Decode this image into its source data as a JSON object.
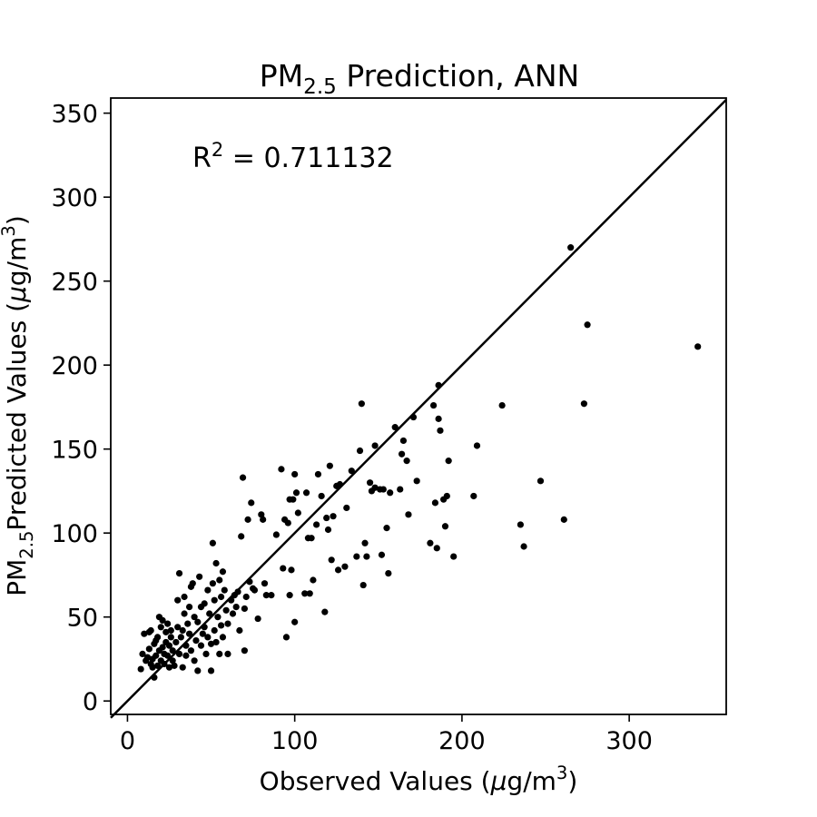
{
  "chart_data": {
    "type": "scatter",
    "title": {
      "prefix": "PM",
      "sub": "2.5",
      "suffix": " Prediction, ANN"
    },
    "xlabel": {
      "prefix": "Observed Values (",
      "mu": "μ",
      "unit": "g/m",
      "sup": "3",
      "suffix": ")"
    },
    "ylabel": {
      "prefix": "PM",
      "sub": "2.5",
      "mid": "Predicted Values (",
      "mu": "μ",
      "unit": "g/m",
      "sup": "3",
      "suffix": ")"
    },
    "annotation": {
      "r": "R",
      "sup": "2",
      "text": " = 0.711132"
    },
    "xlim": [
      -10,
      358
    ],
    "ylim": [
      -8,
      359
    ],
    "xticks": [
      0,
      100,
      200,
      300
    ],
    "yticks": [
      0,
      50,
      100,
      150,
      200,
      250,
      300,
      350
    ],
    "reference_line": [
      [
        -10,
        -10
      ],
      [
        358,
        358
      ]
    ],
    "points": [
      [
        8,
        19
      ],
      [
        9,
        28
      ],
      [
        10,
        40
      ],
      [
        11,
        24
      ],
      [
        12,
        26
      ],
      [
        13,
        31
      ],
      [
        13,
        41
      ],
      [
        14,
        42
      ],
      [
        14,
        22
      ],
      [
        15,
        25
      ],
      [
        15,
        20
      ],
      [
        16,
        14
      ],
      [
        16,
        34
      ],
      [
        17,
        27
      ],
      [
        17,
        36
      ],
      [
        18,
        21
      ],
      [
        18,
        38
      ],
      [
        19,
        50
      ],
      [
        19,
        30
      ],
      [
        20,
        24
      ],
      [
        20,
        44
      ],
      [
        21,
        32
      ],
      [
        21,
        48
      ],
      [
        22,
        22
      ],
      [
        22,
        28
      ],
      [
        23,
        35
      ],
      [
        23,
        41
      ],
      [
        24,
        27
      ],
      [
        24,
        46
      ],
      [
        25,
        33
      ],
      [
        25,
        20
      ],
      [
        26,
        38
      ],
      [
        26,
        42
      ],
      [
        27,
        30
      ],
      [
        27,
        24
      ],
      [
        28,
        21
      ],
      [
        29,
        35
      ],
      [
        30,
        44
      ],
      [
        30,
        60
      ],
      [
        31,
        76
      ],
      [
        31,
        28
      ],
      [
        32,
        38
      ],
      [
        33,
        20
      ],
      [
        33,
        42
      ],
      [
        34,
        62
      ],
      [
        34,
        52
      ],
      [
        35,
        33
      ],
      [
        35,
        27
      ],
      [
        36,
        46
      ],
      [
        37,
        56
      ],
      [
        37,
        40
      ],
      [
        38,
        68
      ],
      [
        38,
        30
      ],
      [
        39,
        70
      ],
      [
        40,
        24
      ],
      [
        40,
        50
      ],
      [
        41,
        36
      ],
      [
        42,
        47
      ],
      [
        42,
        18
      ],
      [
        43,
        74
      ],
      [
        44,
        56
      ],
      [
        44,
        33
      ],
      [
        45,
        40
      ],
      [
        46,
        58
      ],
      [
        46,
        44
      ],
      [
        47,
        28
      ],
      [
        48,
        66
      ],
      [
        48,
        38
      ],
      [
        49,
        52
      ],
      [
        50,
        18
      ],
      [
        50,
        34
      ],
      [
        51,
        94
      ],
      [
        51,
        70
      ],
      [
        52,
        42
      ],
      [
        52,
        60
      ],
      [
        53,
        82
      ],
      [
        53,
        35
      ],
      [
        54,
        50
      ],
      [
        55,
        72
      ],
      [
        55,
        28
      ],
      [
        56,
        62
      ],
      [
        56,
        45
      ],
      [
        57,
        77
      ],
      [
        57,
        38
      ],
      [
        58,
        66
      ],
      [
        59,
        54
      ],
      [
        60,
        28
      ],
      [
        60,
        46
      ],
      [
        62,
        60
      ],
      [
        63,
        52
      ],
      [
        64,
        63
      ],
      [
        65,
        56
      ],
      [
        66,
        65
      ],
      [
        67,
        42
      ],
      [
        68,
        98
      ],
      [
        69,
        133
      ],
      [
        70,
        55
      ],
      [
        70,
        30
      ],
      [
        71,
        62
      ],
      [
        72,
        108
      ],
      [
        73,
        71
      ],
      [
        74,
        118
      ],
      [
        75,
        67
      ],
      [
        76,
        66
      ],
      [
        78,
        49
      ],
      [
        80,
        111
      ],
      [
        81,
        108
      ],
      [
        82,
        70
      ],
      [
        83,
        63
      ],
      [
        86,
        63
      ],
      [
        89,
        99
      ],
      [
        92,
        138
      ],
      [
        93,
        79
      ],
      [
        94,
        108
      ],
      [
        95,
        38
      ],
      [
        96,
        106
      ],
      [
        97,
        63
      ],
      [
        97,
        120
      ],
      [
        98,
        78
      ],
      [
        99,
        120
      ],
      [
        100,
        135
      ],
      [
        100,
        47
      ],
      [
        101,
        124
      ],
      [
        102,
        112
      ],
      [
        106,
        64
      ],
      [
        107,
        124
      ],
      [
        108,
        97
      ],
      [
        109,
        64
      ],
      [
        110,
        97
      ],
      [
        111,
        72
      ],
      [
        113,
        105
      ],
      [
        114,
        135
      ],
      [
        116,
        122
      ],
      [
        118,
        53
      ],
      [
        119,
        109
      ],
      [
        120,
        102
      ],
      [
        121,
        140
      ],
      [
        122,
        84
      ],
      [
        123,
        110
      ],
      [
        125,
        128
      ],
      [
        126,
        78
      ],
      [
        127,
        129
      ],
      [
        130,
        80
      ],
      [
        131,
        115
      ],
      [
        134,
        137
      ],
      [
        137,
        86
      ],
      [
        139,
        149
      ],
      [
        140,
        177
      ],
      [
        141,
        69
      ],
      [
        142,
        94
      ],
      [
        143,
        86
      ],
      [
        145,
        130
      ],
      [
        146,
        125
      ],
      [
        148,
        127
      ],
      [
        148,
        152
      ],
      [
        151,
        126
      ],
      [
        152,
        87
      ],
      [
        153,
        126
      ],
      [
        155,
        103
      ],
      [
        156,
        76
      ],
      [
        157,
        124
      ],
      [
        160,
        163
      ],
      [
        163,
        126
      ],
      [
        164,
        147
      ],
      [
        165,
        155
      ],
      [
        167,
        143
      ],
      [
        168,
        111
      ],
      [
        171,
        169
      ],
      [
        173,
        131
      ],
      [
        181,
        94
      ],
      [
        183,
        176
      ],
      [
        184,
        118
      ],
      [
        185,
        91
      ],
      [
        186,
        168
      ],
      [
        186,
        188
      ],
      [
        187,
        161
      ],
      [
        189,
        120
      ],
      [
        190,
        104
      ],
      [
        191,
        122
      ],
      [
        192,
        143
      ],
      [
        195,
        86
      ],
      [
        207,
        122
      ],
      [
        209,
        152
      ],
      [
        224,
        176
      ],
      [
        235,
        105
      ],
      [
        237,
        92
      ],
      [
        247,
        131
      ],
      [
        261,
        108
      ],
      [
        265,
        270
      ],
      [
        273,
        177
      ],
      [
        275,
        224
      ],
      [
        341,
        211
      ]
    ]
  }
}
